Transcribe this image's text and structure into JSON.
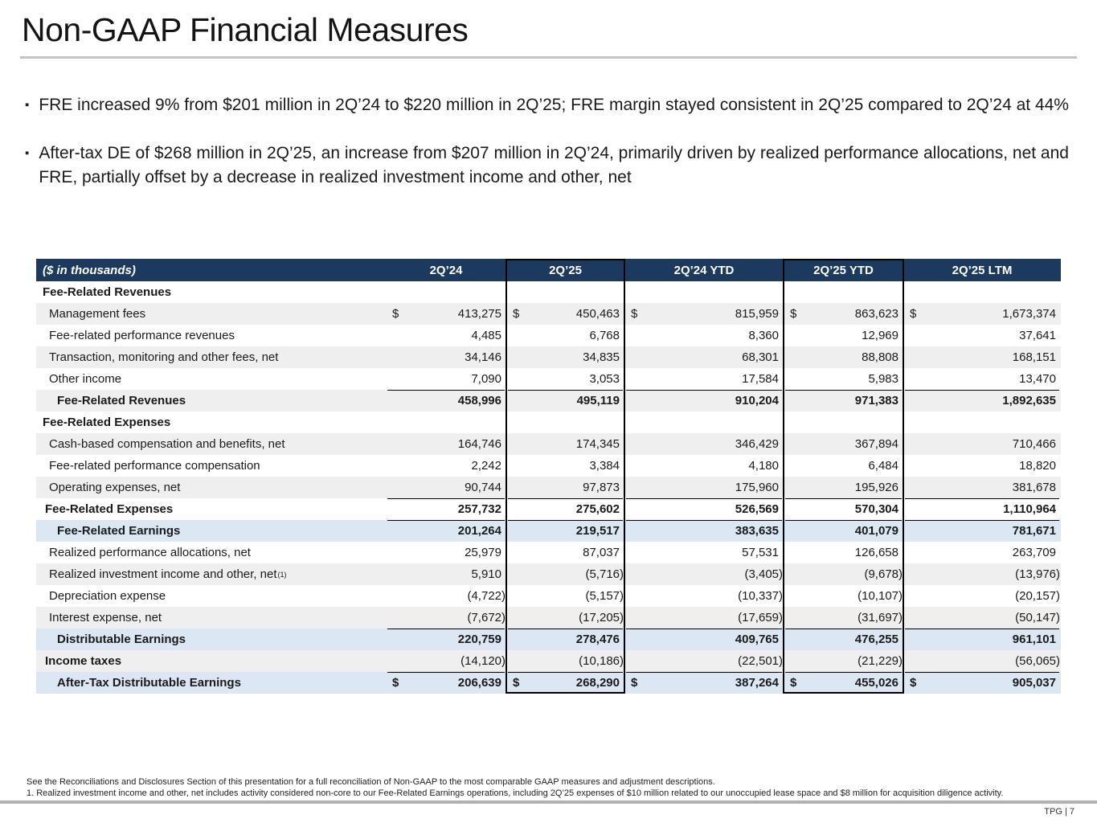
{
  "slide": {
    "title": "Non-GAAP Financial Measures",
    "bullets": [
      "FRE increased 9% from $201 million in 2Q’24 to $220 million in 2Q’25; FRE margin stayed consistent in 2Q’25 compared to 2Q’24 at 44%",
      "After-tax DE of $268 million in 2Q’25, an increase from $207 million in 2Q’24, primarily driven by realized performance allocations, net and FRE, partially offset by a decrease in realized investment income and other, net"
    ],
    "page_label": "TPG | 7"
  },
  "table": {
    "unit_label": "($ in thousands)",
    "columns": [
      "2Q’24",
      "2Q’25",
      "2Q’24 YTD",
      "2Q’25 YTD",
      "2Q’25 LTM"
    ],
    "highlighted_columns": [
      "2Q’25",
      "2Q’25 YTD"
    ],
    "rows": [
      {
        "type": "section",
        "label": "Fee-Related Revenues",
        "bg": "white",
        "values": [
          "",
          "",
          "",
          "",
          ""
        ]
      },
      {
        "type": "item",
        "label": "Management fees",
        "bg": "gray",
        "dollar": true,
        "values": [
          "413,275",
          "450,463",
          "815,959",
          "863,623",
          "1,673,374"
        ]
      },
      {
        "type": "item",
        "label": "Fee-related performance revenues",
        "bg": "white",
        "values": [
          "4,485",
          "6,768",
          "8,360",
          "12,969",
          "37,641"
        ]
      },
      {
        "type": "item",
        "label": "Transaction, monitoring and other fees, net",
        "bg": "gray",
        "values": [
          "34,146",
          "34,835",
          "68,301",
          "88,808",
          "168,151"
        ]
      },
      {
        "type": "item",
        "label": "Other income",
        "bg": "white",
        "values": [
          "7,090",
          "3,053",
          "17,584",
          "5,983",
          "13,470"
        ]
      },
      {
        "type": "total",
        "indent": 2,
        "line": true,
        "valbold": true,
        "label": "Fee-Related Revenues",
        "bg": "gray",
        "values": [
          "458,996",
          "495,119",
          "910,204",
          "971,383",
          "1,892,635"
        ]
      },
      {
        "type": "section",
        "label": "Fee-Related Expenses",
        "bg": "white",
        "values": [
          "",
          "",
          "",
          "",
          ""
        ]
      },
      {
        "type": "item",
        "label": "Cash-based compensation and benefits, net",
        "bg": "gray",
        "values": [
          "164,746",
          "174,345",
          "346,429",
          "367,894",
          "710,466"
        ]
      },
      {
        "type": "item",
        "label": "Fee-related performance compensation",
        "bg": "white",
        "values": [
          "2,242",
          "3,384",
          "4,180",
          "6,484",
          "18,820"
        ]
      },
      {
        "type": "item",
        "label": "Operating expenses, net",
        "bg": "gray",
        "values": [
          "90,744",
          "97,873",
          "175,960",
          "195,926",
          "381,678"
        ]
      },
      {
        "type": "total",
        "indent": 0,
        "line": true,
        "valbold": true,
        "label": "Fee-Related Expenses",
        "bg": "white",
        "values": [
          "257,732",
          "275,602",
          "526,569",
          "570,304",
          "1,110,964"
        ]
      },
      {
        "type": "total",
        "indent": 2,
        "line": true,
        "valbold": true,
        "label": "Fee-Related Earnings",
        "bg": "blue",
        "values": [
          "201,264",
          "219,517",
          "383,635",
          "401,079",
          "781,671"
        ]
      },
      {
        "type": "item",
        "label": "Realized performance allocations, net",
        "bg": "white",
        "values": [
          "25,979",
          "87,037",
          "57,531",
          "126,658",
          "263,709"
        ]
      },
      {
        "type": "item",
        "label": "Realized investment income and other, net",
        "sup": "(1)",
        "bg": "gray",
        "values": [
          "5,910",
          "(5,716)",
          "(3,405)",
          "(9,678)",
          "(13,976)"
        ]
      },
      {
        "type": "item",
        "label": "Depreciation expense",
        "bg": "white",
        "values": [
          "(4,722)",
          "(5,157)",
          "(10,337)",
          "(10,107)",
          "(20,157)"
        ]
      },
      {
        "type": "item",
        "label": "Interest expense, net",
        "bg": "gray",
        "values": [
          "(7,672)",
          "(17,205)",
          "(17,659)",
          "(31,697)",
          "(50,147)"
        ]
      },
      {
        "type": "total",
        "indent": 2,
        "line": true,
        "valbold": true,
        "label": "Distributable Earnings",
        "bg": "blue",
        "values": [
          "220,759",
          "278,476",
          "409,765",
          "476,255",
          "961,101"
        ]
      },
      {
        "type": "total",
        "indent": 0,
        "line": false,
        "valbold": false,
        "label": "Income taxes",
        "bg": "gray",
        "values": [
          "(14,120)",
          "(10,186)",
          "(22,501)",
          "(21,229)",
          "(56,065)"
        ]
      },
      {
        "type": "total",
        "indent": 2,
        "line": true,
        "valbold": true,
        "dollar": true,
        "label": "After-Tax Distributable Earnings",
        "bg": "blue",
        "values": [
          "206,639",
          "268,290",
          "387,264",
          "455,026",
          "905,037"
        ]
      }
    ]
  },
  "footnotes": [
    "See the Reconciliations and Disclosures Section of this presentation for a full reconciliation of Non-GAAP to the most comparable GAAP measures and adjustment descriptions.",
    "1. Realized investment income and other, net includes activity considered non-core to our Fee-Related Earnings operations, including 2Q’25 expenses of $10 million related to our unoccupied lease space and $8 million for acquisition diligence activity."
  ],
  "colors": {
    "header_navy": "#1c3a5e",
    "stripe_gray": "#efefef",
    "highlight_blue": "#dbe8f4",
    "rule_gray": "#c4c4c4",
    "footer_bar_gray": "#b1b1b1"
  }
}
